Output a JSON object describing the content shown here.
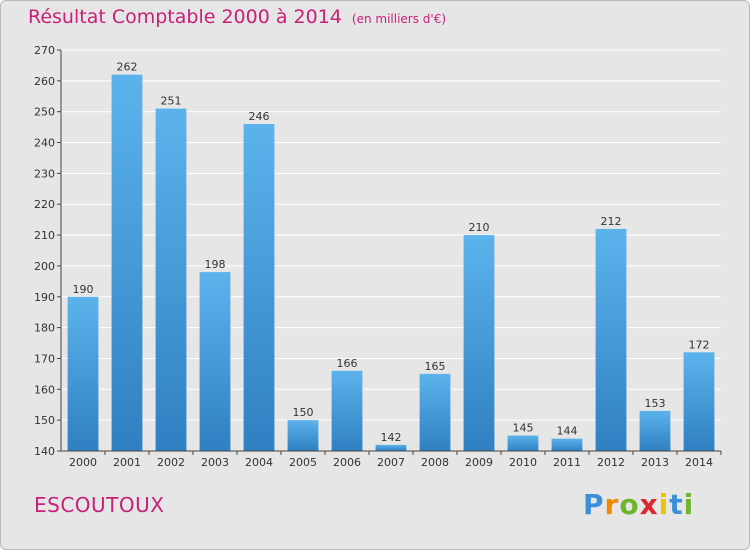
{
  "title": "Résultat Comptable 2000 à 2014",
  "subtitle": "(en milliers d'€)",
  "commune": "ESCOUTOUX",
  "logo": {
    "letters": [
      "P",
      "r",
      "o",
      "x",
      "i",
      "t",
      "i"
    ],
    "colors": [
      "#3a8fd8",
      "#f28a00",
      "#6db52c",
      "#e0262d",
      "#f0c000",
      "#3a8fd8",
      "#6db52c"
    ]
  },
  "colors": {
    "title": "#c81f7a",
    "bar_light": "#5cb3ec",
    "bar_dark": "#2f80c2",
    "background": "#e6e6e6",
    "grid": "#ffffff"
  },
  "chart_data": {
    "type": "bar",
    "title": "Résultat Comptable 2000 à 2014",
    "subtitle": "(en milliers d'€)",
    "categories": [
      "2000",
      "2001",
      "2002",
      "2003",
      "2004",
      "2005",
      "2006",
      "2007",
      "2008",
      "2009",
      "2010",
      "2011",
      "2012",
      "2013",
      "2014"
    ],
    "values": [
      190,
      262,
      251,
      198,
      246,
      150,
      166,
      142,
      165,
      210,
      145,
      144,
      212,
      153,
      172
    ],
    "ylim": [
      140,
      270
    ],
    "yticks": [
      140,
      150,
      160,
      170,
      180,
      190,
      200,
      210,
      220,
      230,
      240,
      250,
      260,
      270
    ],
    "grid": true,
    "data_labels": true
  }
}
